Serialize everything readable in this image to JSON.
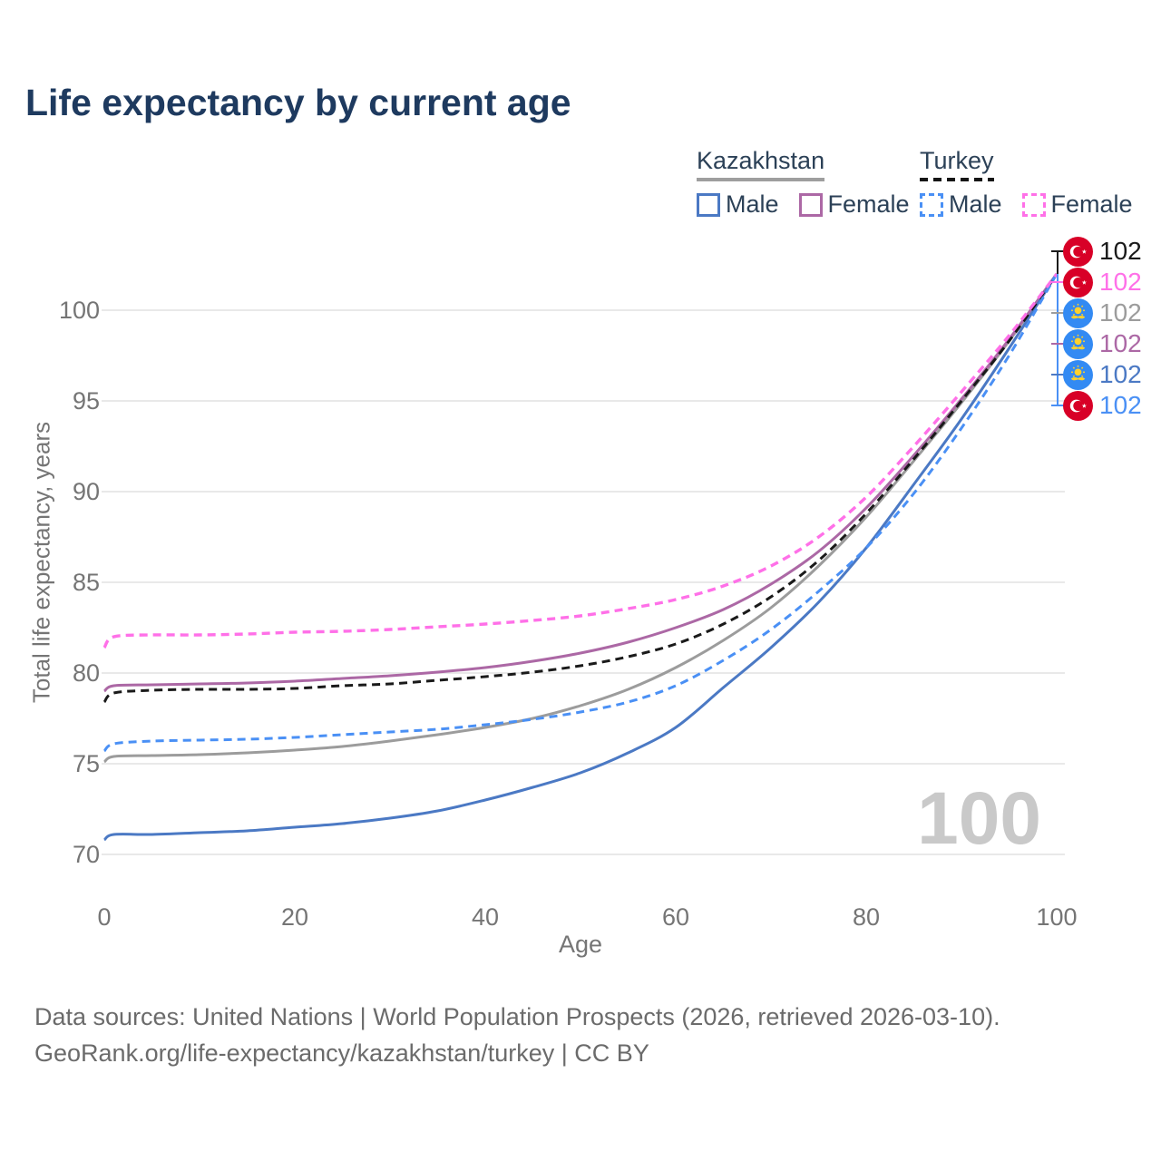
{
  "title": "Life expectancy by current age",
  "legend": {
    "groups": [
      {
        "country": "Kazakhstan",
        "line_style": "solid",
        "line_color": "#9e9e9e",
        "items": [
          {
            "label": "Male",
            "color": "#4b79c4"
          },
          {
            "label": "Female",
            "color": "#ac68a5"
          }
        ]
      },
      {
        "country": "Turkey",
        "line_style": "dashed",
        "line_color": "#151515",
        "items": [
          {
            "label": "Male",
            "color": "#4a90f5"
          },
          {
            "label": "Female",
            "color": "#ff70e8"
          }
        ]
      }
    ]
  },
  "chart_data": {
    "type": "line",
    "title": "Life expectancy by current age",
    "xlabel": "Age",
    "ylabel": "Total life expectancy, years",
    "x_ticks": [
      0,
      20,
      40,
      60,
      80,
      100
    ],
    "y_ticks": [
      70,
      75,
      80,
      85,
      90,
      95,
      100
    ],
    "xlim": [
      0,
      100
    ],
    "ylim": [
      70,
      102
    ],
    "grid": "horizontal-only",
    "legend_position": "top-right",
    "age_cursor_watermark": "100",
    "ages": [
      0,
      1,
      5,
      10,
      15,
      20,
      25,
      30,
      35,
      40,
      45,
      50,
      55,
      60,
      65,
      70,
      75,
      80,
      85,
      90,
      95,
      100
    ],
    "series": [
      {
        "key": "kz_total",
        "name": "Kazakhstan (both sexes)",
        "country": "Kazakhstan",
        "sex": "Both",
        "style": "solid",
        "color": "#9c9c9c",
        "values": [
          75.1,
          75.4,
          75.45,
          75.5,
          75.6,
          75.75,
          75.95,
          76.25,
          76.6,
          77.0,
          77.5,
          78.2,
          79.1,
          80.3,
          81.8,
          83.6,
          85.9,
          88.6,
          91.7,
          94.9,
          98.3,
          102
        ]
      },
      {
        "key": "kz_female",
        "name": "Kazakhstan Female",
        "country": "Kazakhstan",
        "sex": "Female",
        "style": "solid",
        "color": "#ac68a5",
        "values": [
          79.0,
          79.3,
          79.35,
          79.4,
          79.45,
          79.55,
          79.7,
          79.85,
          80.05,
          80.3,
          80.65,
          81.1,
          81.7,
          82.5,
          83.5,
          84.9,
          86.7,
          89.1,
          92.0,
          95.1,
          98.4,
          102
        ]
      },
      {
        "key": "kz_male",
        "name": "Kazakhstan Male",
        "country": "Kazakhstan",
        "sex": "Male",
        "style": "solid",
        "color": "#4b79c4",
        "values": [
          70.8,
          71.1,
          71.1,
          71.2,
          71.3,
          71.5,
          71.7,
          72.0,
          72.4,
          73.0,
          73.7,
          74.5,
          75.6,
          77.0,
          79.2,
          81.4,
          83.9,
          86.9,
          90.4,
          94.0,
          97.9,
          102
        ]
      },
      {
        "key": "tr_total",
        "name": "Turkey (both sexes)",
        "country": "Turkey",
        "sex": "Both",
        "style": "dashed",
        "color": "#1a1a1a",
        "values": [
          78.4,
          78.9,
          79.05,
          79.1,
          79.1,
          79.15,
          79.3,
          79.4,
          79.6,
          79.8,
          80.05,
          80.4,
          80.9,
          81.6,
          82.7,
          84.2,
          86.2,
          88.8,
          91.8,
          95.0,
          98.3,
          102
        ]
      },
      {
        "key": "tr_male",
        "name": "Turkey Male",
        "country": "Turkey",
        "sex": "Male",
        "style": "dashed",
        "color": "#4a90f5",
        "values": [
          75.7,
          76.1,
          76.25,
          76.3,
          76.35,
          76.45,
          76.6,
          76.75,
          76.9,
          77.15,
          77.45,
          77.85,
          78.4,
          79.3,
          80.7,
          82.4,
          84.5,
          86.9,
          89.9,
          93.5,
          97.5,
          102
        ]
      },
      {
        "key": "tr_female",
        "name": "Turkey Female",
        "country": "Turkey",
        "sex": "Female",
        "style": "dashed",
        "color": "#ff70e8",
        "values": [
          81.4,
          82.0,
          82.1,
          82.1,
          82.15,
          82.25,
          82.3,
          82.4,
          82.55,
          82.7,
          82.9,
          83.15,
          83.55,
          84.05,
          84.8,
          85.9,
          87.5,
          89.7,
          92.5,
          95.5,
          98.6,
          102
        ]
      }
    ]
  },
  "end_labels": [
    {
      "flag": "turkey",
      "series": "Turkey (both sexes)",
      "value": "102",
      "color": "#1a1a1a"
    },
    {
      "flag": "turkey",
      "series": "Turkey Female",
      "value": "102",
      "color": "#ff70e8"
    },
    {
      "flag": "kazakhstan",
      "series": "Kazakhstan (both sexes)",
      "value": "102",
      "color": "#9c9c9c"
    },
    {
      "flag": "kazakhstan",
      "series": "Kazakhstan Female",
      "value": "102",
      "color": "#ac68a5"
    },
    {
      "flag": "kazakhstan",
      "series": "Kazakhstan Male",
      "value": "102",
      "color": "#4b79c4"
    },
    {
      "flag": "turkey",
      "series": "Turkey Male",
      "value": "102",
      "color": "#4a90f5"
    }
  ],
  "watermark": "100",
  "footer": {
    "line1": "Data sources: United Nations | World Population Prospects (2026, retrieved 2026-03-10).",
    "line2": "GeoRank.org/life-expectancy/kazakhstan/turkey | CC BY"
  },
  "colors": {
    "title_navy": "#1e3a5f",
    "axis_gray": "#757575",
    "grid_gray": "#e9e9e9",
    "watermark_gray": "#c9c9c9",
    "turkey_flag_red": "#d80027",
    "kazakhstan_flag_blue": "#338af3",
    "kazakhstan_flag_yellow": "#ffd12c"
  }
}
